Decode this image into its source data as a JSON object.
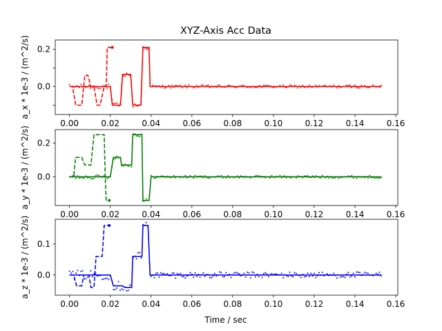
{
  "chart_data": {
    "type": "line",
    "title": "XYZ-Axis Acc Data",
    "xlabel": "Time / sec",
    "xticks": [
      "0.00",
      "0.02",
      "0.04",
      "0.06",
      "0.08",
      "0.10",
      "0.12",
      "0.14",
      "0.16"
    ],
    "grid": false,
    "legend": "none",
    "subplots": [
      {
        "id": "x",
        "ylabel": "a_x * 1e-3 / (m^2/s)",
        "ylim": [
          -0.15,
          0.25
        ],
        "yticks": [
          -0.1,
          0.0,
          0.1,
          0.2
        ],
        "ytick_labels": [
          "",
          "0.0",
          "",
          "0.2"
        ],
        "color": "#ff0000",
        "dashed": {
          "x": [
            0.0,
            0.0015,
            0.003,
            0.006,
            0.0075,
            0.009,
            0.0105,
            0.012,
            0.0135,
            0.015,
            0.017,
            0.018,
            0.0185,
            0.0195,
            0.021
          ],
          "y": [
            0.0,
            0.0,
            -0.1,
            -0.1,
            0.06,
            0.06,
            0.0,
            0.0,
            -0.1,
            -0.1,
            0.0,
            0.0,
            0.21,
            0.21,
            0.21
          ]
        },
        "solid": {
          "x": [
            0.0,
            0.02,
            0.021,
            0.025,
            0.026,
            0.03,
            0.031,
            0.035,
            0.036,
            0.039,
            0.0395,
            0.04,
            0.153
          ],
          "y": [
            0.0,
            0.0,
            -0.1,
            -0.1,
            0.065,
            0.065,
            -0.1,
            -0.1,
            0.21,
            0.21,
            0.0,
            0.0,
            0.0
          ]
        },
        "noise_amp": 0.008
      },
      {
        "id": "y",
        "ylabel": "a_y * 1e-3 / (m^2/s)",
        "ylim": [
          -0.17,
          0.28
        ],
        "yticks": [
          0.0,
          0.2
        ],
        "ytick_labels": [
          "0.0",
          "0.2"
        ],
        "color": "#008000",
        "dashed": {
          "x": [
            0.0,
            0.002,
            0.003,
            0.006,
            0.0075,
            0.0105,
            0.012,
            0.017,
            0.0175,
            0.018,
            0.0185,
            0.0195
          ],
          "y": [
            0.0,
            0.0,
            0.115,
            0.115,
            0.07,
            0.07,
            0.25,
            0.25,
            0.0,
            -0.14,
            -0.14,
            -0.14
          ]
        },
        "solid": {
          "x": [
            0.0,
            0.02,
            0.0215,
            0.025,
            0.0255,
            0.0305,
            0.031,
            0.0355,
            0.036,
            0.039,
            0.04,
            0.153
          ],
          "y": [
            0.0,
            0.0,
            0.115,
            0.115,
            0.07,
            0.07,
            0.25,
            0.25,
            -0.14,
            -0.14,
            0.0,
            0.0
          ]
        },
        "noise_amp": 0.008
      },
      {
        "id": "z",
        "ylabel": "a_z * 1e-3 / (m^2/s)",
        "ylim": [
          -0.065,
          0.18
        ],
        "yticks": [
          0.0,
          0.1
        ],
        "ytick_labels": [
          "0.0",
          "0.1"
        ],
        "color": "#0000ff",
        "dashed": {
          "x": [
            0.0,
            0.002,
            0.0035,
            0.006,
            0.007,
            0.0095,
            0.0105,
            0.012,
            0.013,
            0.016,
            0.017,
            0.0185,
            0.0195
          ],
          "y": [
            0.0,
            0.0,
            -0.035,
            -0.035,
            0.0,
            0.0,
            -0.04,
            -0.04,
            0.06,
            0.06,
            0.16,
            0.16,
            0.16
          ]
        },
        "solid": {
          "x": [
            0.0,
            0.02,
            0.0215,
            0.026,
            0.027,
            0.0305,
            0.031,
            0.0355,
            0.036,
            0.0385,
            0.0395,
            0.153
          ],
          "y": [
            0.0,
            0.0,
            -0.035,
            -0.035,
            -0.04,
            -0.04,
            0.06,
            0.06,
            0.16,
            0.16,
            0.0,
            0.0
          ]
        },
        "noise_amp": 0.01
      }
    ]
  }
}
